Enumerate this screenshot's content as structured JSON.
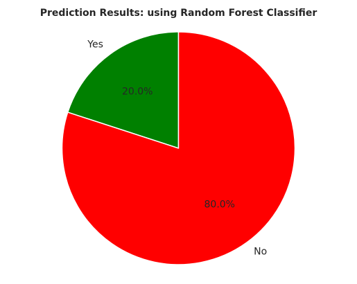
{
  "chart_data": {
    "type": "pie",
    "title": "Prediction Results: using Random Forest Classifier",
    "slices": [
      {
        "label": "Yes",
        "value": 20.0,
        "pct_label": "20.0%",
        "color": "#008000"
      },
      {
        "label": "No",
        "value": 80.0,
        "pct_label": "80.0%",
        "color": "#ff0000"
      }
    ],
    "start_angle_deg": 90,
    "direction": "counterclockwise",
    "edge_color": "#ffffff",
    "legend": "none"
  }
}
